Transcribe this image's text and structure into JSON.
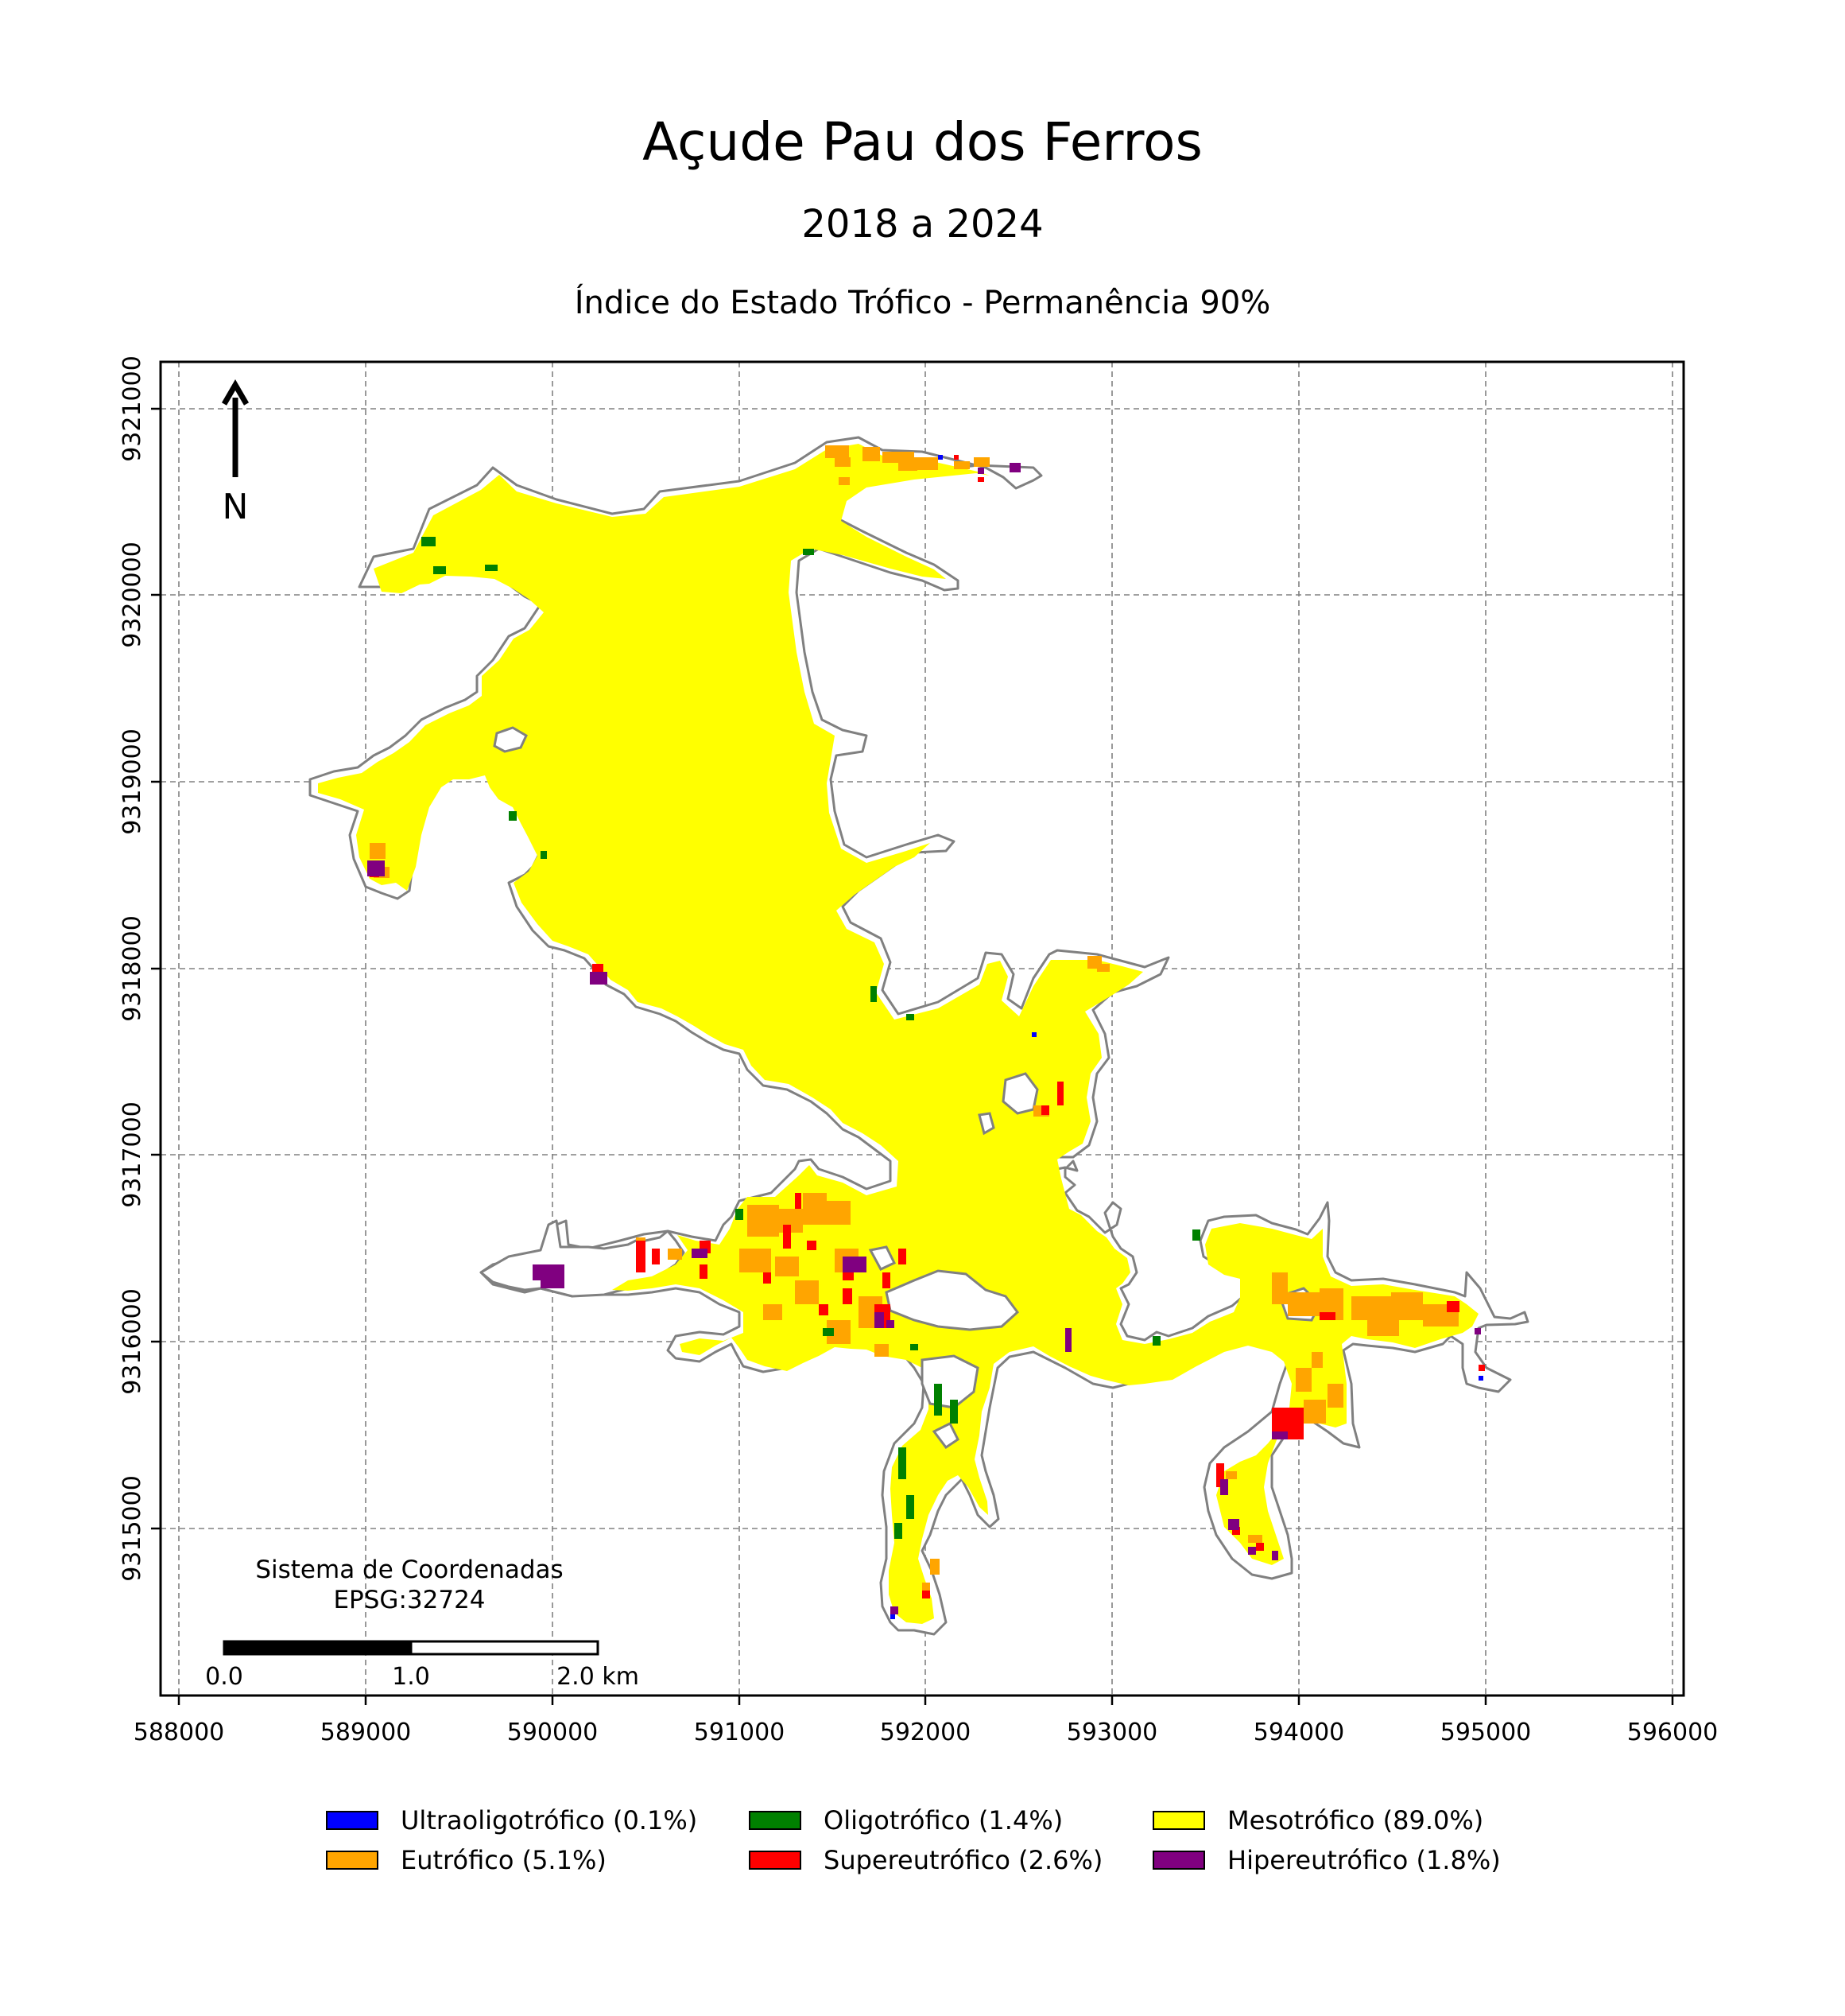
{
  "title": "Açude Pau dos Ferros",
  "subtitle": "2018 a 2024",
  "map_title": "Índice do Estado Trófico - Permanência 90%",
  "north_label": "N",
  "crs_label_line1": "Sistema de Coordenadas",
  "crs_label_line2": "EPSG:32724",
  "scalebar": {
    "labels": [
      "0.0",
      "1.0",
      "2.0 km"
    ]
  },
  "x_ticks": [
    "588000",
    "589000",
    "590000",
    "591000",
    "592000",
    "593000",
    "594000",
    "595000",
    "596000"
  ],
  "y_ticks": [
    "9321000",
    "9320000",
    "9319000",
    "9318000",
    "9317000",
    "9316000",
    "9315000"
  ],
  "colors": {
    "ultraoligotrofico": "#0000ff",
    "oligotrofico": "#008000",
    "mesotrofico": "#ffff00",
    "eutrofico": "#ffa500",
    "supereutrofico": "#ff0000",
    "hipereutrofico": "#800080",
    "outline": "#808080",
    "grid": "#808080"
  },
  "legend": [
    {
      "label": "Ultraoligotrófico (0.1%)",
      "color": "#0000ff"
    },
    {
      "label": "Oligotrófico (1.4%)",
      "color": "#008000"
    },
    {
      "label": "Mesotrófico (89.0%)",
      "color": "#ffff00"
    },
    {
      "label": "Eutrófico (5.1%)",
      "color": "#ffa500"
    },
    {
      "label": "Supereutrófico (2.6%)",
      "color": "#ff0000"
    },
    {
      "label": "Hipereutrófico (1.8%)",
      "color": "#800080"
    }
  ]
}
